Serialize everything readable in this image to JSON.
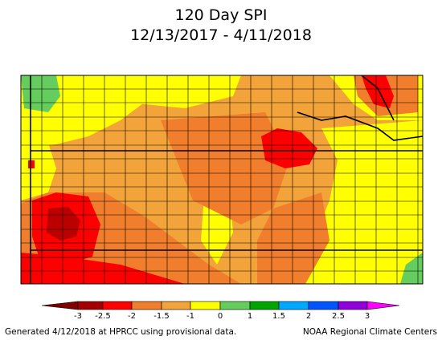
{
  "title": "120 Day SPI",
  "date_range": "12/13/2017 - 4/11/2018",
  "legend": {
    "ticks": [
      "-3",
      "-2.5",
      "-2",
      "-1.5",
      "-1",
      "0",
      "1",
      "1.5",
      "2",
      "2.5",
      "3"
    ],
    "colors": [
      "#a50000",
      "#ff0000",
      "#f07e2c",
      "#f2a43a",
      "#ffff00",
      "#65cc5e",
      "#00a600",
      "#00a8ff",
      "#0055ff",
      "#9000d8",
      "#ff00ff"
    ],
    "left_arrow_color": "#800000",
    "right_arrow_color": "#ff00ff"
  },
  "footer": {
    "left": "Generated 4/12/2018 at HPRCC using provisional data.",
    "right": "NOAA Regional Climate Centers"
  },
  "map_colors": {
    "extreme_dry": "#a50000",
    "severe_dry": "#ff0000",
    "moderate_dry": "#f07e2c",
    "mild_dry": "#f2a43a",
    "near_normal_dry": "#ffff00",
    "near_normal_wet": "#65cc5e",
    "county_lines": "#000000"
  }
}
